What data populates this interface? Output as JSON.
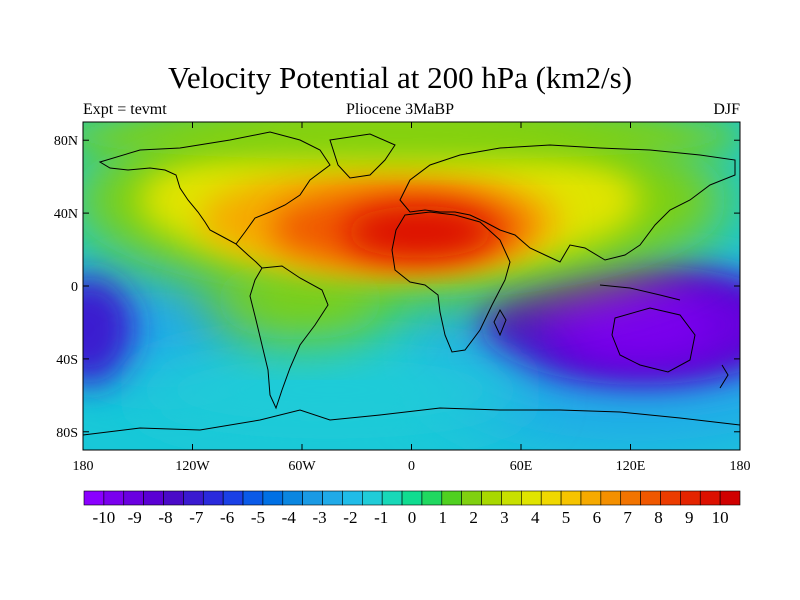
{
  "title": "Velocity Potential at 200 hPa (km2/s)",
  "subtitle_left": "Expt = tevmt",
  "subtitle_center": "Pliocene  3MaBP",
  "subtitle_right": "DJF",
  "colors": {
    "scale": [
      "#8a00ff",
      "#7a00ee",
      "#6a00e0",
      "#5a00d4",
      "#4a0ac8",
      "#3a1ad0",
      "#2a2adc",
      "#1a40e6",
      "#0a5ae8",
      "#0070e4",
      "#0a86e0",
      "#1a9ae4",
      "#20aae8",
      "#20bce8",
      "#20ccd8",
      "#18d8b8",
      "#10dc90",
      "#20d860",
      "#50d020",
      "#80d010",
      "#a8d800",
      "#c8e000",
      "#e0e400",
      "#f0d800",
      "#f6c400",
      "#f6aa00",
      "#f49000",
      "#f27400",
      "#f05800",
      "#ec3c00",
      "#e42400",
      "#dc1000",
      "#d00000"
    ],
    "coastline": "#000000"
  },
  "map": {
    "projection": "cylindrical-equidistant",
    "lon_range": [
      -180,
      180
    ],
    "lat_range": [
      -90,
      90
    ],
    "x_ticks": [
      {
        "lon": -180,
        "label": "180"
      },
      {
        "lon": -120,
        "label": "120W"
      },
      {
        "lon": -60,
        "label": "60W"
      },
      {
        "lon": 0,
        "label": "0"
      },
      {
        "lon": 60,
        "label": "60E"
      },
      {
        "lon": 120,
        "label": "120E"
      },
      {
        "lon": 180,
        "label": "180"
      }
    ],
    "y_ticks": [
      {
        "lat": 80,
        "label": "80N"
      },
      {
        "lat": 40,
        "label": "40N"
      },
      {
        "lat": 0,
        "label": "0"
      },
      {
        "lat": -40,
        "label": "40S"
      },
      {
        "lat": -80,
        "label": "80S"
      }
    ],
    "field_centers": [
      {
        "lon": -5,
        "lat": 28,
        "value": 10
      },
      {
        "lon": 120,
        "lat": -28,
        "value": -10
      },
      {
        "lon": -178,
        "lat": -15,
        "value": -7
      }
    ]
  },
  "colorbar": {
    "labels": [
      "-10",
      "-9",
      "-8",
      "-7",
      "-6",
      "-5",
      "-4",
      "-3",
      "-2",
      "-1",
      "0",
      "1",
      "2",
      "3",
      "4",
      "5",
      "6",
      "7",
      "8",
      "9",
      "10"
    ],
    "min": -10,
    "max": 10,
    "step": 0.5
  }
}
